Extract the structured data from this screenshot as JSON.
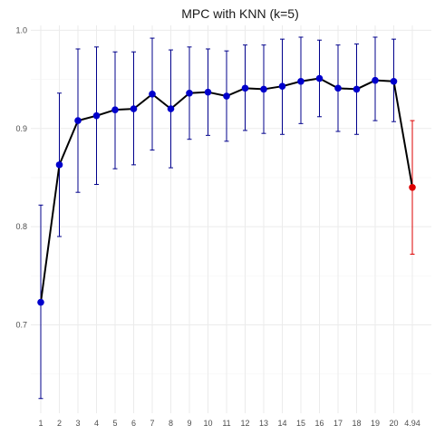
{
  "chart_data": {
    "type": "line",
    "title": "MPC with KNN (k=5)",
    "xlabel": "",
    "ylabel": "",
    "categories": [
      "1",
      "2",
      "3",
      "4",
      "5",
      "6",
      "7",
      "8",
      "9",
      "10",
      "11",
      "12",
      "13",
      "14",
      "15",
      "16",
      "17",
      "18",
      "19",
      "20",
      "4.94"
    ],
    "values": [
      0.723,
      0.863,
      0.908,
      0.913,
      0.919,
      0.92,
      0.935,
      0.92,
      0.936,
      0.937,
      0.933,
      0.941,
      0.94,
      0.943,
      0.948,
      0.951,
      0.941,
      0.94,
      0.949,
      0.948,
      0.84
    ],
    "error_lower": [
      0.625,
      0.79,
      0.835,
      0.843,
      0.859,
      0.863,
      0.878,
      0.86,
      0.889,
      0.893,
      0.887,
      0.898,
      0.895,
      0.894,
      0.905,
      0.912,
      0.897,
      0.894,
      0.908,
      0.907,
      0.772
    ],
    "error_upper": [
      0.822,
      0.936,
      0.981,
      0.983,
      0.978,
      0.978,
      0.992,
      0.98,
      0.983,
      0.981,
      0.979,
      0.985,
      0.985,
      0.991,
      0.993,
      0.99,
      0.985,
      0.986,
      0.993,
      0.991,
      0.908
    ],
    "ylim": [
      0.61,
      1.005
    ],
    "yticks": [
      0.7,
      0.8,
      0.9,
      1.0
    ],
    "ytick_labels": [
      "0.7",
      "0.8",
      "0.9",
      "1.0"
    ],
    "grid": true,
    "legend": "none",
    "colors": {
      "line": "#000000",
      "point": "#0000cc",
      "errorbar": "#00008b",
      "highlight": "#dd0000",
      "grid_major": "#ebebeb",
      "grid_minor": "#f5f5f5"
    },
    "highlight_index": 20
  }
}
